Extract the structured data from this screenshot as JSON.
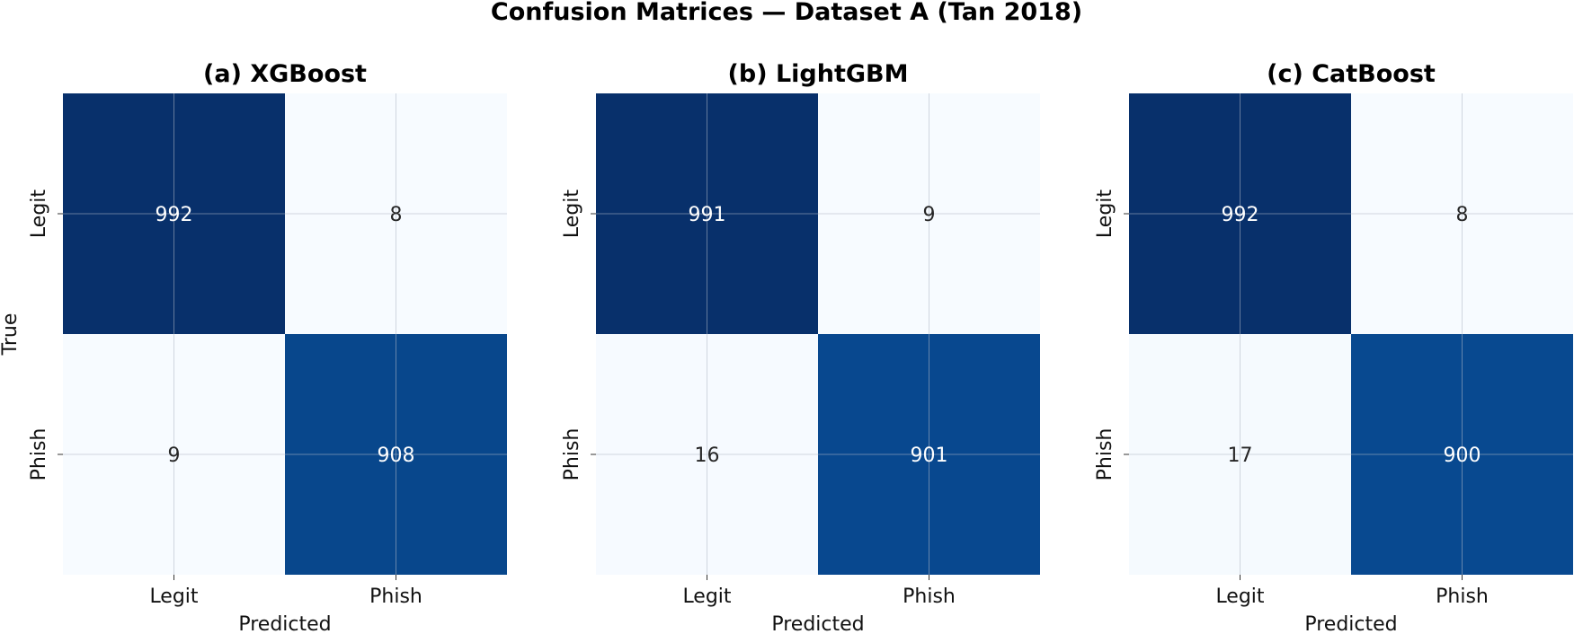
{
  "figure_title": "Confusion Matrices — Dataset A (Tan 2018)",
  "colors": {
    "cmap_low": "#f7fbff",
    "cmap_high": "#08306b",
    "text_dark": "#262626",
    "text_light": "#ffffff",
    "grid": "#b0b8c4"
  },
  "chart_data": [
    {
      "type": "heatmap",
      "title": "(a) XGBoost",
      "xlabel": "Predicted",
      "ylabel": "True",
      "x_ticks": [
        "Legit",
        "Phish"
      ],
      "y_ticks": [
        "Legit",
        "Phish"
      ],
      "matrix": [
        [
          992,
          8
        ],
        [
          9,
          908
        ]
      ],
      "colorbar": false
    },
    {
      "type": "heatmap",
      "title": "(b) LightGBM",
      "xlabel": "Predicted",
      "ylabel": "",
      "x_ticks": [
        "Legit",
        "Phish"
      ],
      "y_ticks": [
        "Legit",
        "Phish"
      ],
      "matrix": [
        [
          991,
          9
        ],
        [
          16,
          901
        ]
      ],
      "colorbar": false
    },
    {
      "type": "heatmap",
      "title": "(c) CatBoost",
      "xlabel": "Predicted",
      "ylabel": "",
      "x_ticks": [
        "Legit",
        "Phish"
      ],
      "y_ticks": [
        "Legit",
        "Phish"
      ],
      "matrix": [
        [
          992,
          8
        ],
        [
          17,
          900
        ]
      ],
      "colorbar": false
    }
  ]
}
